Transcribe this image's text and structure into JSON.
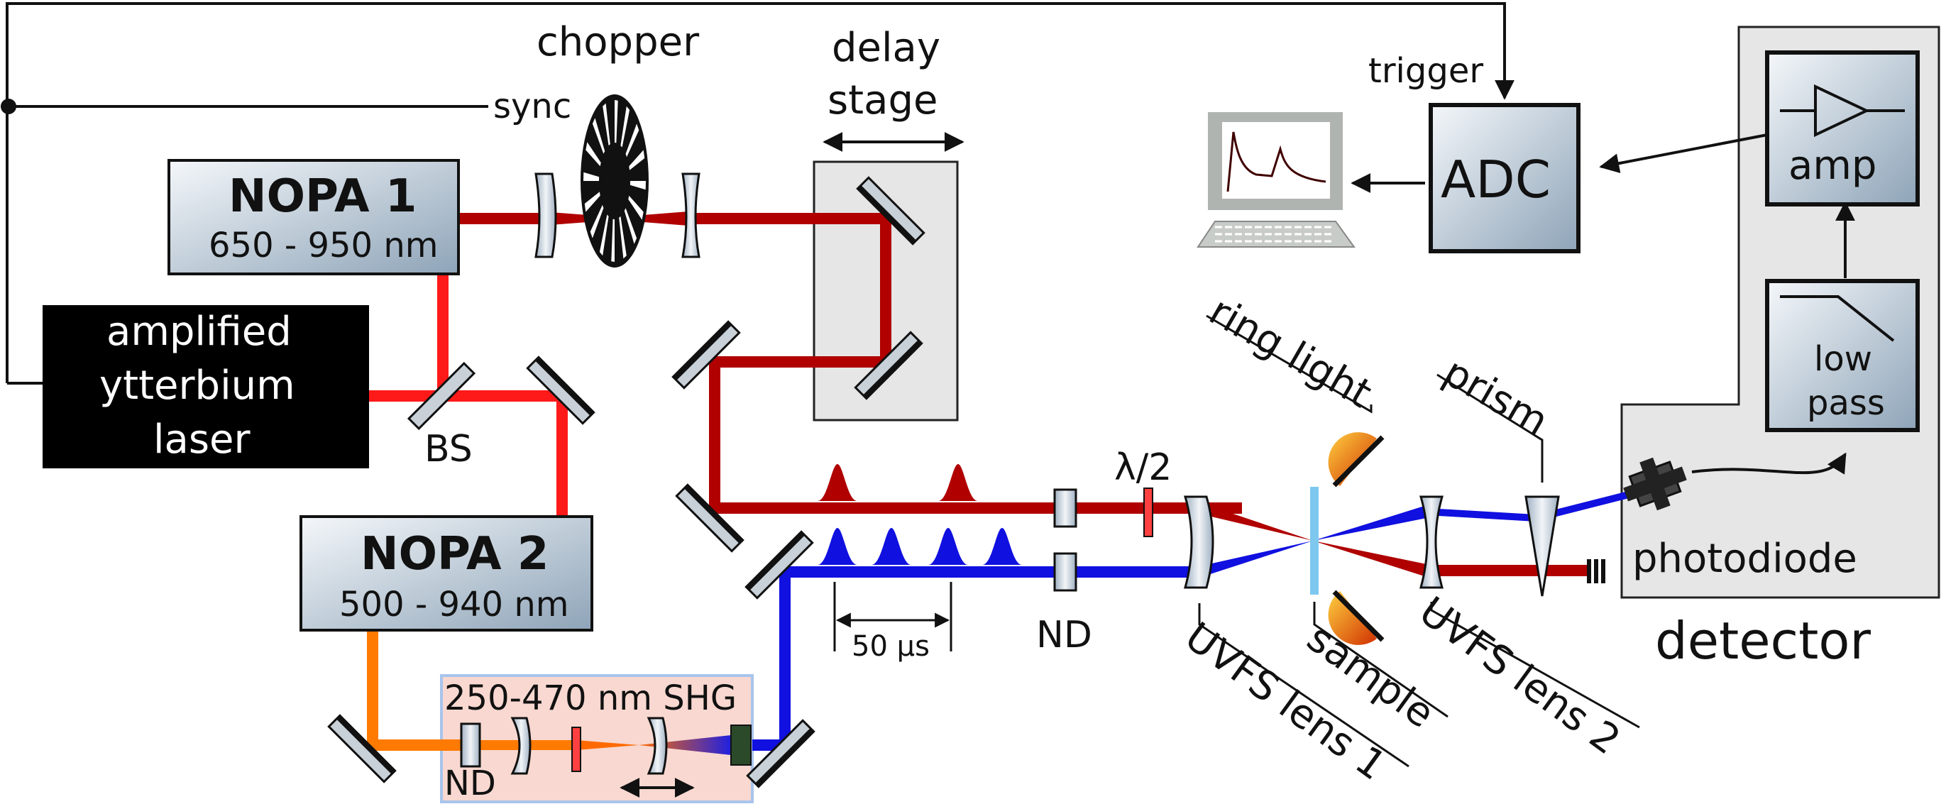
{
  "labels": {
    "chopper": "chopper",
    "delay_stage_l1": "delay",
    "delay_stage_l2": "stage",
    "sync": "sync",
    "trigger": "trigger",
    "adc": "ADC",
    "amp": "amp",
    "low_pass_l1": "low",
    "low_pass_l2": "pass",
    "nopa1_title": "NOPA 1",
    "nopa1_range": "650 - 950 nm",
    "laser_l1": "amplified",
    "laser_l2": "ytterbium",
    "laser_l3": "laser",
    "bs": "BS",
    "nopa2_title": "NOPA 2",
    "nopa2_range": "500 - 940 nm",
    "shg": "250-470 nm SHG",
    "nd_shg": "ND",
    "nd_main": "ND",
    "half_wave": "λ/2",
    "time_scale": "50 µs",
    "ring_light": "ring light",
    "prism": "prism",
    "photodiode": "photodiode",
    "detector": "detector",
    "sample": "sample",
    "lens1": "UVFS lens 1",
    "lens2": "UVFS lens 2"
  },
  "colors": {
    "nopa1_beam": "#b00000",
    "pump_beam": "#ff1a1a",
    "nopa2_beam": "#ff7a00",
    "uv_beam": "#1010e0",
    "box_gray": "#e6e6e6",
    "shg_box": "#f8d8d0"
  }
}
